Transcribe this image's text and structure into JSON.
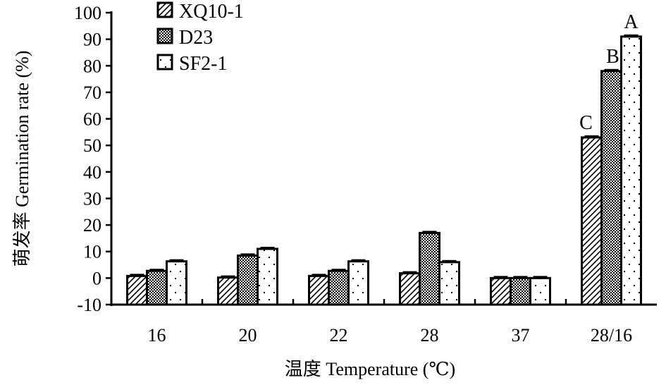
{
  "chart_data": {
    "type": "bar",
    "title": "",
    "xlabel": "温度 Temperature (℃)",
    "ylabel": "萌发率 Germination rate (%)",
    "ylim": [
      -10,
      100
    ],
    "yticks": [
      -10,
      0,
      10,
      20,
      30,
      40,
      50,
      60,
      70,
      80,
      90,
      100
    ],
    "categories": [
      "16",
      "20",
      "22",
      "28",
      "37",
      "28/16"
    ],
    "series": [
      {
        "name": "XQ10-1",
        "pattern": "diagonal-hatch",
        "values": [
          0.8,
          0.2,
          0.8,
          1.8,
          0,
          53
        ]
      },
      {
        "name": "D23",
        "pattern": "checker",
        "values": [
          2.7,
          8.5,
          2.7,
          17,
          0,
          78
        ]
      },
      {
        "name": "SF2-1",
        "pattern": "dots",
        "values": [
          6.3,
          11,
          6.3,
          6,
          0,
          91
        ]
      }
    ],
    "annotations": [
      {
        "category": "28/16",
        "series": "XQ10-1",
        "text": "C"
      },
      {
        "category": "28/16",
        "series": "D23",
        "text": "B"
      },
      {
        "category": "28/16",
        "series": "SF2-1",
        "text": "A"
      }
    ],
    "grid": false,
    "legend": "top-left",
    "colors": {
      "ink": "#000000",
      "background": "#ffffff"
    }
  }
}
